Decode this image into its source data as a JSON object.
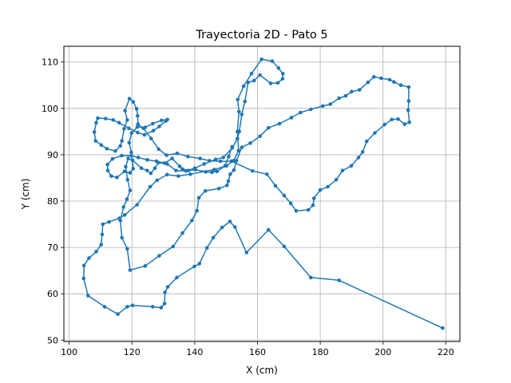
{
  "chart_data": {
    "type": "line",
    "title": "Trayectoria 2D - Pato 5",
    "xlabel": "X (cm)",
    "ylabel": "Y (cm)",
    "xlim": [
      98.3,
      224.5
    ],
    "ylim": [
      49.7,
      113.4
    ],
    "xticks": [
      100,
      120,
      140,
      160,
      180,
      200,
      220
    ],
    "yticks": [
      50,
      60,
      70,
      80,
      90,
      100,
      110
    ],
    "grid": true,
    "line_color": "#1f77b4",
    "series": [
      {
        "marker": "circle",
        "points": [
          [
            219.0,
            52.6
          ],
          [
            186.0,
            62.9
          ],
          [
            177.0,
            63.5
          ],
          [
            168.5,
            70.2
          ],
          [
            163.5,
            73.8
          ],
          [
            156.5,
            68.9
          ],
          [
            152.8,
            74.4
          ],
          [
            151.2,
            75.6
          ],
          [
            148.7,
            74.3
          ],
          [
            145.9,
            72.1
          ],
          [
            143.9,
            69.9
          ],
          [
            141.5,
            66.5
          ],
          [
            139.9,
            65.9
          ],
          [
            134.3,
            63.5
          ],
          [
            131.4,
            61.5
          ],
          [
            130.5,
            60.3
          ],
          [
            130.4,
            57.9
          ],
          [
            129.3,
            57.0
          ],
          [
            126.6,
            57.2
          ],
          [
            120.2,
            57.5
          ],
          [
            118.5,
            57.2
          ],
          [
            115.5,
            55.6
          ],
          [
            111.3,
            57.2
          ],
          [
            106.0,
            59.6
          ],
          [
            104.6,
            63.3
          ],
          [
            104.7,
            66.1
          ],
          [
            106.3,
            67.7
          ],
          [
            108.6,
            69.1
          ],
          [
            110.2,
            70.6
          ],
          [
            110.5,
            72.8
          ],
          [
            110.7,
            75.0
          ],
          [
            112.7,
            75.5
          ],
          [
            116.0,
            76.3
          ],
          [
            117.7,
            77.0
          ],
          [
            121.6,
            79.2
          ],
          [
            125.8,
            83.1
          ],
          [
            128.0,
            84.5
          ],
          [
            131.2,
            85.7
          ],
          [
            134.8,
            85.4
          ],
          [
            138.6,
            85.8
          ],
          [
            146.2,
            86.8
          ],
          [
            150.1,
            87.6
          ],
          [
            152.4,
            88.7
          ],
          [
            154.0,
            90.9
          ],
          [
            153.6,
            95.0
          ],
          [
            154.1,
            99.3
          ],
          [
            153.7,
            101.9
          ],
          [
            155.6,
            104.8
          ],
          [
            158.1,
            107.5
          ],
          [
            161.3,
            110.6
          ],
          [
            164.7,
            110.2
          ],
          [
            166.7,
            108.7
          ],
          [
            168.1,
            107.5
          ],
          [
            168.0,
            106.4
          ],
          [
            166.5,
            105.5
          ],
          [
            164.2,
            105.4
          ],
          [
            160.8,
            107.2
          ],
          [
            158.9,
            106.0
          ],
          [
            157.0,
            105.6
          ],
          [
            156.0,
            101.5
          ],
          [
            155.0,
            98.7
          ],
          [
            154.2,
            95.0
          ],
          [
            153.6,
            93.5
          ],
          [
            152.0,
            91.5
          ],
          [
            149.1,
            89.4
          ],
          [
            146.7,
            89.0
          ],
          [
            143.0,
            88.0
          ],
          [
            140.0,
            87.1
          ],
          [
            137.2,
            86.5
          ],
          [
            134.0,
            86.6
          ],
          [
            131.2,
            88.0
          ],
          [
            128.4,
            88.3
          ],
          [
            127.3,
            87.1
          ],
          [
            126.0,
            86.0
          ],
          [
            124.8,
            86.6
          ],
          [
            123.0,
            87.1
          ],
          [
            120.2,
            88.8
          ],
          [
            118.8,
            89.2
          ],
          [
            118.0,
            87.4
          ],
          [
            118.6,
            84.6
          ],
          [
            119.4,
            82.3
          ],
          [
            118.4,
            80.4
          ],
          [
            117.3,
            78.7
          ],
          [
            116.3,
            75.8
          ],
          [
            116.8,
            72.1
          ],
          [
            118.5,
            69.7
          ],
          [
            119.4,
            65.1
          ],
          [
            124.2,
            66.0
          ],
          [
            128.7,
            68.2
          ],
          [
            133.1,
            70.2
          ],
          [
            136.1,
            73.1
          ],
          [
            139.1,
            75.8
          ],
          [
            140.7,
            77.9
          ],
          [
            141.3,
            80.7
          ],
          [
            143.4,
            82.2
          ],
          [
            147.7,
            82.7
          ],
          [
            150.3,
            83.4
          ],
          [
            150.7,
            84.3
          ],
          [
            151.3,
            85.8
          ],
          [
            152.5,
            86.7
          ],
          [
            153.3,
            88.7
          ],
          [
            155.0,
            91.6
          ],
          [
            157.7,
            92.5
          ],
          [
            160.8,
            94.0
          ],
          [
            163.5,
            95.8
          ],
          [
            167.0,
            96.7
          ],
          [
            170.8,
            98.0
          ],
          [
            173.7,
            99.1
          ],
          [
            177.0,
            99.8
          ],
          [
            180.8,
            100.5
          ],
          [
            183.2,
            100.9
          ],
          [
            186.0,
            102.2
          ],
          [
            188.1,
            102.7
          ],
          [
            190.0,
            103.6
          ],
          [
            192.5,
            104.0
          ],
          [
            195.2,
            105.6
          ],
          [
            197.1,
            106.8
          ],
          [
            199.4,
            106.5
          ],
          [
            202.1,
            106.2
          ],
          [
            203.5,
            105.7
          ],
          [
            205.7,
            105.0
          ],
          [
            208.2,
            104.6
          ],
          [
            208.2,
            101.6
          ],
          [
            208.0,
            99.6
          ],
          [
            208.4,
            97.0
          ],
          [
            206.9,
            96.6
          ],
          [
            204.8,
            97.7
          ],
          [
            202.8,
            97.6
          ],
          [
            200.5,
            96.5
          ],
          [
            197.4,
            94.7
          ],
          [
            194.8,
            92.9
          ],
          [
            193.5,
            90.6
          ],
          [
            192.2,
            89.4
          ],
          [
            189.9,
            87.6
          ],
          [
            187.1,
            86.6
          ],
          [
            185.1,
            84.6
          ],
          [
            182.4,
            83.1
          ],
          [
            180.0,
            82.4
          ],
          [
            178.0,
            80.6
          ],
          [
            177.7,
            79.1
          ],
          [
            176.2,
            78.1
          ],
          [
            172.3,
            77.9
          ],
          [
            170.6,
            79.5
          ],
          [
            168.5,
            81.2
          ],
          [
            165.7,
            83.3
          ],
          [
            163.0,
            85.8
          ],
          [
            158.4,
            86.5
          ],
          [
            151.7,
            88.6
          ],
          [
            148.2,
            88.6
          ],
          [
            144.7,
            88.7
          ],
          [
            141.7,
            89.2
          ],
          [
            137.8,
            89.6
          ],
          [
            134.4,
            90.3
          ],
          [
            131.0,
            89.9
          ],
          [
            128.5,
            91.2
          ],
          [
            126.1,
            93.5
          ],
          [
            123.6,
            95.7
          ],
          [
            121.9,
            96.6
          ],
          [
            121.8,
            98.4
          ],
          [
            121.5,
            99.9
          ],
          [
            120.4,
            101.4
          ],
          [
            119.2,
            102.1
          ],
          [
            117.8,
            99.5
          ],
          [
            118.5,
            97.5
          ],
          [
            117.5,
            95.6
          ],
          [
            116.8,
            93.0
          ],
          [
            116.3,
            91.9
          ],
          [
            114.7,
            90.8
          ],
          [
            112.0,
            91.3
          ],
          [
            110.2,
            92.1
          ],
          [
            108.4,
            93.0
          ],
          [
            108.0,
            94.9
          ],
          [
            108.6,
            96.9
          ],
          [
            109.1,
            97.9
          ],
          [
            111.6,
            97.8
          ],
          [
            114.0,
            97.5
          ],
          [
            115.9,
            96.9
          ],
          [
            119.0,
            95.7
          ],
          [
            121.8,
            94.8
          ],
          [
            124.0,
            94.3
          ],
          [
            126.8,
            95.2
          ],
          [
            128.7,
            96.1
          ],
          [
            130.8,
            97.3
          ],
          [
            131.3,
            97.6
          ],
          [
            129.4,
            97.4
          ],
          [
            126.6,
            96.7
          ],
          [
            124.2,
            95.9
          ],
          [
            121.7,
            96.0
          ],
          [
            119.9,
            94.7
          ],
          [
            119.1,
            92.6
          ],
          [
            119.8,
            90.5
          ],
          [
            120.4,
            87.0
          ],
          [
            119.4,
            86.1
          ],
          [
            117.6,
            86.4
          ],
          [
            115.2,
            85.1
          ],
          [
            113.4,
            85.4
          ],
          [
            112.3,
            86.6
          ],
          [
            112.2,
            87.9
          ],
          [
            113.8,
            89.1
          ],
          [
            116.7,
            89.8
          ],
          [
            119.8,
            89.8
          ],
          [
            122.0,
            89.4
          ],
          [
            124.9,
            88.9
          ],
          [
            127.8,
            88.6
          ],
          [
            130.4,
            88.2
          ],
          [
            132.8,
            89.2
          ],
          [
            135.2,
            87.5
          ],
          [
            136.1,
            86.9
          ],
          [
            138.0,
            86.6
          ],
          [
            140.2,
            86.8
          ],
          [
            143.5,
            86.3
          ],
          [
            145.5,
            86.2
          ],
          [
            147.1,
            86.4
          ],
          [
            149.7,
            87.6
          ],
          [
            150.8,
            89.6
          ],
          [
            151.9,
            91.7
          ]
        ]
      }
    ]
  }
}
